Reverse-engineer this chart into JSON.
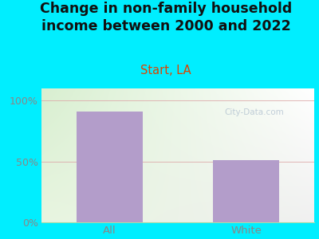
{
  "title": "Change in non-family household\nincome between 2000 and 2022",
  "subtitle": "Start, LA",
  "categories": [
    "All",
    "White"
  ],
  "values": [
    91,
    51
  ],
  "bar_color": "#b39dca",
  "background_outer": "#00eeff",
  "background_inner_topleft": "#e8f5e0",
  "background_inner_topright": "#f0f0f0",
  "background_inner_bottomleft": "#d8efd0",
  "background_inner_bottomright": "#ffffff",
  "title_fontsize": 12.5,
  "subtitle_fontsize": 10.5,
  "subtitle_color": "#dd4400",
  "title_color": "#111111",
  "tick_label_color": "#888888",
  "yticks": [
    0,
    50,
    100
  ],
  "ytick_labels": [
    "0%",
    "50%",
    "100%"
  ],
  "ylim": [
    0,
    110
  ],
  "watermark": "City-Data.com"
}
